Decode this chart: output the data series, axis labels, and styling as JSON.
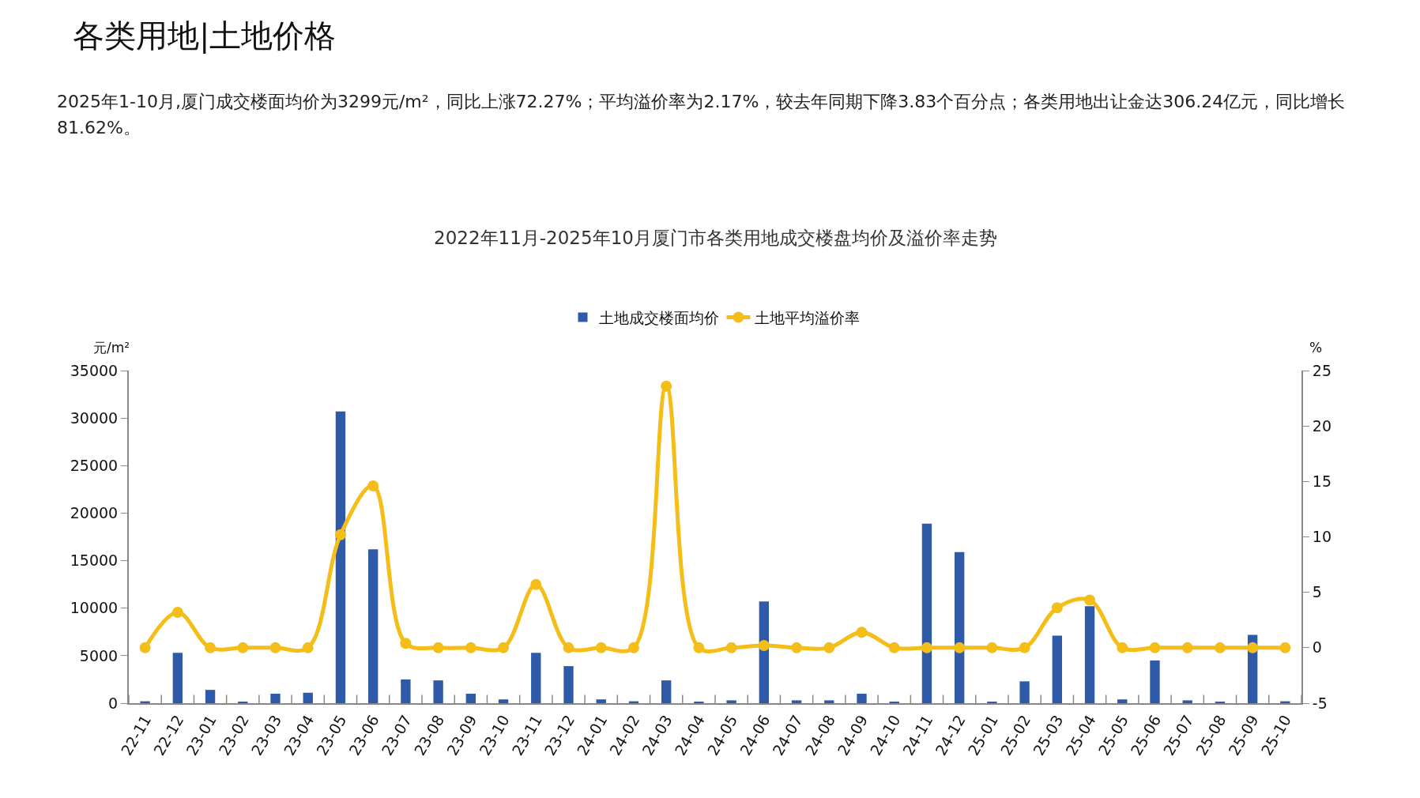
{
  "chart_data": {
    "type": "bar",
    "title": "各类用地|土地价格",
    "subtitle": "2025年1-10月,厦门成交楼面均价为3299元/m²，同比上涨72.27%；平均溢价率为2.17%，较去年同期下降3.83个百分点；各类用地出让金达306.24亿元，同比增长81.62%。",
    "annotations": [
      "2022年11月-2025年10月厦门市各类用地成交楼盘均价及溢价率走势"
    ],
    "ylabel": "元/m²",
    "y2label": "%",
    "categories": [
      "22-11",
      "22-12",
      "23-01",
      "23-02",
      "23-03",
      "23-04",
      "23-05",
      "23-06",
      "23-07",
      "23-08",
      "23-09",
      "23-10",
      "23-11",
      "23-12",
      "24-01",
      "24-02",
      "24-03",
      "24-04",
      "24-05",
      "24-06",
      "24-07",
      "24-08",
      "24-09",
      "24-10",
      "24-11",
      "24-12",
      "25-01",
      "25-02",
      "25-03",
      "25-04",
      "25-05",
      "25-06",
      "25-07",
      "25-08",
      "25-09",
      "25-10"
    ],
    "series": [
      {
        "name": "土地成交楼面均价",
        "color": "#2e5aa8",
        "values": [
          200,
          5300,
          1400,
          100,
          1000,
          1100,
          30700,
          16200,
          2500,
          2400,
          1000,
          400,
          5300,
          3900,
          400,
          200,
          2400,
          100,
          300,
          10700,
          300,
          300,
          1000,
          100,
          18900,
          15900,
          100,
          2300,
          7100,
          10200,
          400,
          4500,
          300,
          100,
          7200,
          200
        ]
      },
      {
        "name": "土地平均溢价率",
        "type": "line",
        "axis": "y2",
        "color": "#f5bd17",
        "values": [
          0,
          3.2,
          0,
          0,
          0,
          0,
          10.2,
          14.6,
          0.4,
          0,
          0,
          0,
          5.7,
          0,
          0,
          0,
          23.6,
          0,
          0,
          0.2,
          0,
          0,
          1.4,
          0,
          0,
          0,
          0,
          0,
          3.6,
          4.3,
          0,
          0,
          0,
          0,
          0,
          0
        ]
      }
    ],
    "ylim": [
      0,
      35000
    ],
    "yticks": [
      0,
      5000,
      10000,
      15000,
      20000,
      25000,
      30000,
      35000
    ],
    "y2lim": [
      -5,
      25
    ],
    "y2ticks": [
      -5,
      0,
      5,
      10,
      15,
      20,
      25
    ],
    "grid": false,
    "legend": "top",
    "marker": "circle",
    "line_style": "solid"
  }
}
